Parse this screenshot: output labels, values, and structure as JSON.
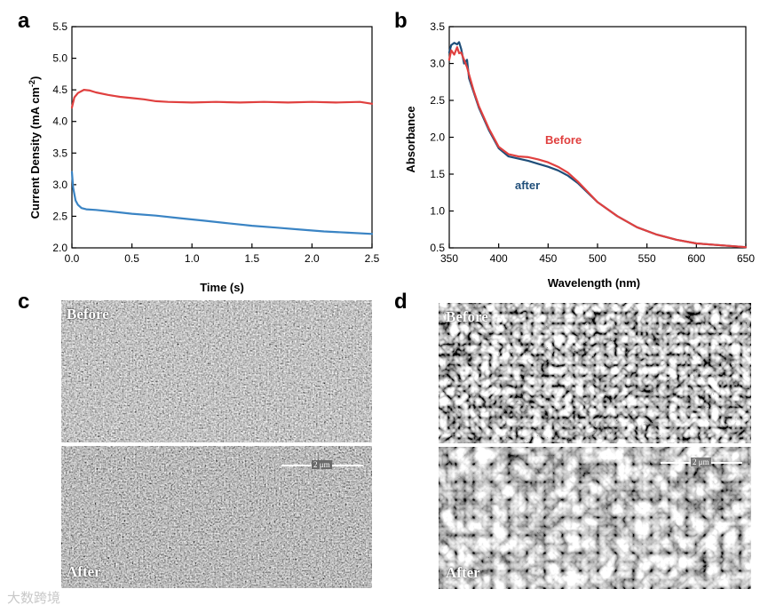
{
  "panels": {
    "a": "a",
    "b": "b",
    "c": "c",
    "d": "d"
  },
  "chart_data": [
    {
      "type": "line",
      "panel": "a",
      "xlabel": "Time (s)",
      "ylabel": "Current Density (mA cm",
      "ylabel_sup": "-2",
      "ylabel_end": ")",
      "xlim": [
        0,
        2.5
      ],
      "ylim": [
        2.0,
        5.5
      ],
      "xticks": [
        "0.0",
        "0.5",
        "1.0",
        "1.5",
        "2.0",
        "2.5"
      ],
      "yticks": [
        "2.0",
        "2.5",
        "3.0",
        "3.5",
        "4.0",
        "4.5",
        "5.0",
        "5.5"
      ],
      "grid": false,
      "series": [
        {
          "color": "#e0403f",
          "x": [
            0,
            0.02,
            0.05,
            0.1,
            0.15,
            0.2,
            0.3,
            0.4,
            0.5,
            0.6,
            0.7,
            0.8,
            1.0,
            1.2,
            1.4,
            1.6,
            1.8,
            2.0,
            2.2,
            2.4,
            2.5
          ],
          "y": [
            4.22,
            4.38,
            4.45,
            4.5,
            4.49,
            4.46,
            4.42,
            4.39,
            4.37,
            4.35,
            4.32,
            4.31,
            4.3,
            4.31,
            4.3,
            4.31,
            4.3,
            4.31,
            4.3,
            4.31,
            4.28
          ]
        },
        {
          "color": "#3a84c4",
          "x": [
            0,
            0.01,
            0.03,
            0.05,
            0.08,
            0.12,
            0.2,
            0.3,
            0.5,
            0.7,
            0.9,
            1.1,
            1.3,
            1.5,
            1.7,
            1.9,
            2.1,
            2.3,
            2.5
          ],
          "y": [
            3.2,
            2.95,
            2.75,
            2.68,
            2.63,
            2.61,
            2.6,
            2.58,
            2.54,
            2.51,
            2.47,
            2.43,
            2.39,
            2.35,
            2.32,
            2.29,
            2.26,
            2.24,
            2.22
          ]
        }
      ]
    },
    {
      "type": "line",
      "panel": "b",
      "xlabel": "Wavelength (nm)",
      "ylabel": "Absorbance",
      "xlim": [
        350,
        650
      ],
      "ylim": [
        0.5,
        3.5
      ],
      "xticks": [
        "350",
        "400",
        "450",
        "500",
        "550",
        "600",
        "650"
      ],
      "yticks": [
        "0.5",
        "1.0",
        "1.5",
        "2.0",
        "2.5",
        "3.0",
        "3.5"
      ],
      "grid": false,
      "series": [
        {
          "name": "after",
          "color": "#1f4e79",
          "x": [
            350,
            352,
            355,
            358,
            360,
            362,
            365,
            368,
            370,
            375,
            380,
            390,
            400,
            410,
            420,
            430,
            440,
            450,
            460,
            470,
            480,
            490,
            500,
            520,
            540,
            560,
            580,
            600,
            620,
            650
          ],
          "y": [
            3.15,
            3.25,
            3.28,
            3.26,
            3.29,
            3.2,
            3.0,
            3.05,
            2.8,
            2.6,
            2.4,
            2.1,
            1.85,
            1.74,
            1.71,
            1.68,
            1.64,
            1.6,
            1.55,
            1.48,
            1.38,
            1.25,
            1.12,
            0.93,
            0.78,
            0.68,
            0.61,
            0.56,
            0.54,
            0.51
          ]
        },
        {
          "name": "Before",
          "color": "#e0403f",
          "x": [
            350,
            352,
            355,
            358,
            360,
            362,
            365,
            368,
            370,
            375,
            380,
            390,
            400,
            410,
            420,
            430,
            440,
            450,
            460,
            470,
            480,
            490,
            500,
            520,
            540,
            560,
            580,
            600,
            620,
            650
          ],
          "y": [
            3.05,
            3.18,
            3.12,
            3.22,
            3.14,
            3.15,
            3.05,
            2.95,
            2.85,
            2.62,
            2.42,
            2.12,
            1.87,
            1.77,
            1.74,
            1.73,
            1.7,
            1.66,
            1.6,
            1.52,
            1.4,
            1.26,
            1.12,
            0.93,
            0.78,
            0.68,
            0.61,
            0.56,
            0.54,
            0.51
          ]
        }
      ]
    }
  ],
  "sem_c": {
    "top_label": "Before",
    "bottom_label": "After",
    "scale": "2 μm"
  },
  "sem_d": {
    "top_label": "Before",
    "bottom_label": "After",
    "scale": "2 μm"
  },
  "watermark": "大数跨境"
}
